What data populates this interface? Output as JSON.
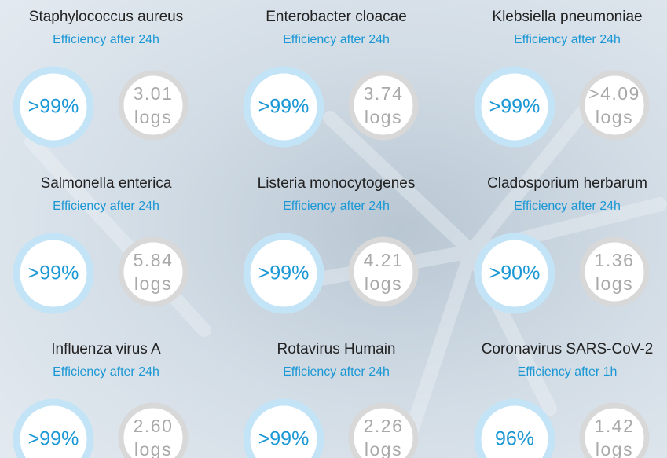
{
  "items": [
    {
      "name": "Staphylococcus aureus",
      "subtitle": "Efficiency after 24h",
      "efficiency": ">99%",
      "reduction": "3.01",
      "unit": "logs"
    },
    {
      "name": "Enterobacter cloacae",
      "subtitle": "Efficiency after 24h",
      "efficiency": ">99%",
      "reduction": "3.74",
      "unit": "logs"
    },
    {
      "name": "Klebsiella pneumoniae",
      "subtitle": "Efficiency after 24h",
      "efficiency": ">99%",
      "reduction": ">4.09",
      "unit": "logs"
    },
    {
      "name": "Salmonella enterica",
      "subtitle": "Efficiency after 24h",
      "efficiency": ">99%",
      "reduction": "5.84",
      "unit": "logs"
    },
    {
      "name": "Listeria monocytogenes",
      "subtitle": "Efficiency after 24h",
      "efficiency": ">99%",
      "reduction": "4.21",
      "unit": "logs"
    },
    {
      "name": "Cladosporium herbarum",
      "subtitle": "Efficiency after 24h",
      "efficiency": ">90%",
      "reduction": "1.36",
      "unit": "logs"
    },
    {
      "name": "Influenza virus A",
      "subtitle": "Efficiency after 24h",
      "efficiency": ">99%",
      "reduction": "2.60",
      "unit": "logs"
    },
    {
      "name": "Rotavirus Humain",
      "subtitle": "Efficiency after 24h",
      "efficiency": ">99%",
      "reduction": "2.26",
      "unit": "logs"
    },
    {
      "name": "Coronavirus SARS-CoV-2",
      "subtitle": "Efficiency after 1h",
      "efficiency": "96%",
      "reduction": "1.42",
      "unit": "logs"
    }
  ]
}
